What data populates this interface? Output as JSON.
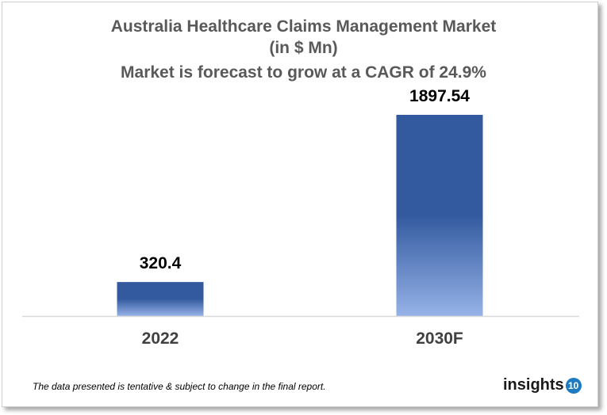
{
  "chart_data": {
    "type": "bar",
    "title": [
      "Australia Healthcare Claims Management Market",
      "(in $ Mn)",
      "Market is forecast to grow at a CAGR of 24.9%"
    ],
    "categories": [
      "2022",
      "2030F"
    ],
    "values": [
      320.4,
      1897.54
    ],
    "value_labels": [
      "320.4",
      "1897.54"
    ],
    "ylim": [
      0,
      1897.54
    ],
    "grid": false,
    "colors": {
      "bar_top": "#335a9f",
      "bar_bottom": "#96b2e8",
      "title": "#595959"
    }
  },
  "footnote": "The data presented is tentative & subject to change in the final report.",
  "logo": {
    "text": "insights",
    "badge": "10"
  }
}
